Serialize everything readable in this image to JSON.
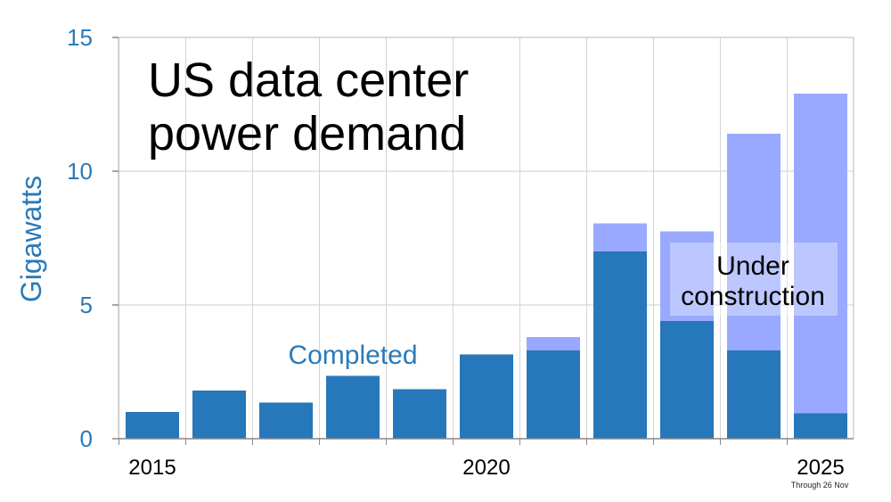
{
  "chart_data": {
    "type": "bar",
    "stacked": true,
    "title_lines": [
      "US data center",
      "power demand"
    ],
    "xlabel": "",
    "ylabel": "Gigawatts",
    "ylim": [
      0,
      15
    ],
    "yticks": [
      0,
      5,
      10,
      15
    ],
    "xtick_labels": [
      {
        "label": "2015",
        "year": 2015
      },
      {
        "label": "2020",
        "year": 2020
      },
      {
        "label": "2025",
        "year": 2025
      }
    ],
    "x_note": "Through 26 Nov",
    "categories": [
      2015,
      2016,
      2017,
      2018,
      2019,
      2020,
      2021,
      2022,
      2023,
      2024,
      2025
    ],
    "grid": true,
    "series": [
      {
        "name": "Completed",
        "color": "#2777bb",
        "values": [
          1.0,
          1.8,
          1.35,
          2.35,
          1.85,
          3.15,
          3.3,
          7.0,
          4.4,
          3.3,
          0.95
        ]
      },
      {
        "name": "Under construction",
        "color": "#99a9ff",
        "values": [
          0,
          0,
          0,
          0,
          0,
          0,
          0.5,
          1.05,
          3.35,
          8.1,
          11.95
        ]
      }
    ],
    "annotations": {
      "completed": "Completed",
      "under_construction_lines": [
        "Under",
        "construction"
      ]
    }
  }
}
